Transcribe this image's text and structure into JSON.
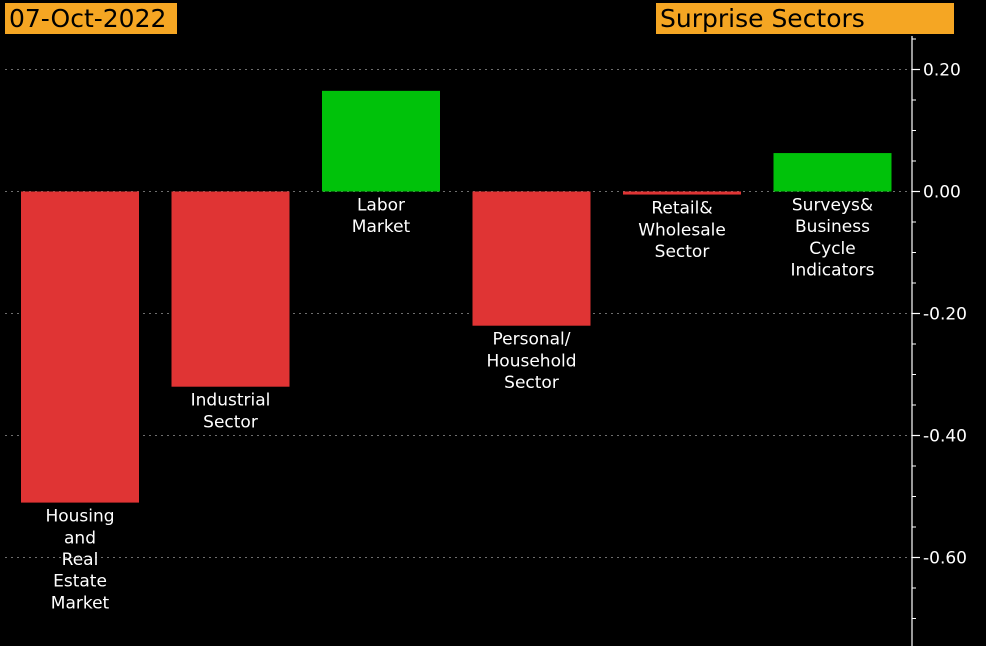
{
  "header": {
    "date": "07-Oct-2022",
    "title": "Surprise Sectors"
  },
  "colors": {
    "background": "#000000",
    "positive": "#00c20a",
    "negative": "#e03434",
    "badge": "#f5a623",
    "text": "#ffffff",
    "grid": "#6e6e6e"
  },
  "chart_data": {
    "type": "bar",
    "title": "Surprise Sectors",
    "xlabel": "",
    "ylabel": "",
    "ylim": [
      -0.74,
      0.26
    ],
    "yticks": [
      0.2,
      0.0,
      -0.2,
      -0.4,
      -0.6
    ],
    "ytick_labels": [
      "0.20",
      "0.00",
      "-0.20",
      "-0.40",
      "-0.60"
    ],
    "grid": true,
    "legend": "none",
    "categories": [
      [
        "Housing",
        "and",
        "Real",
        "Estate",
        "Market"
      ],
      [
        "Industrial",
        "Sector"
      ],
      [
        "Labor",
        "Market"
      ],
      [
        "Personal/",
        "Household",
        "Sector"
      ],
      [
        "Retail&",
        "Wholesale",
        "Sector"
      ],
      [
        "Surveys&",
        "Business",
        "Cycle",
        "Indicators"
      ]
    ],
    "values": [
      -0.51,
      -0.32,
      0.165,
      -0.22,
      -0.005,
      0.063
    ]
  }
}
